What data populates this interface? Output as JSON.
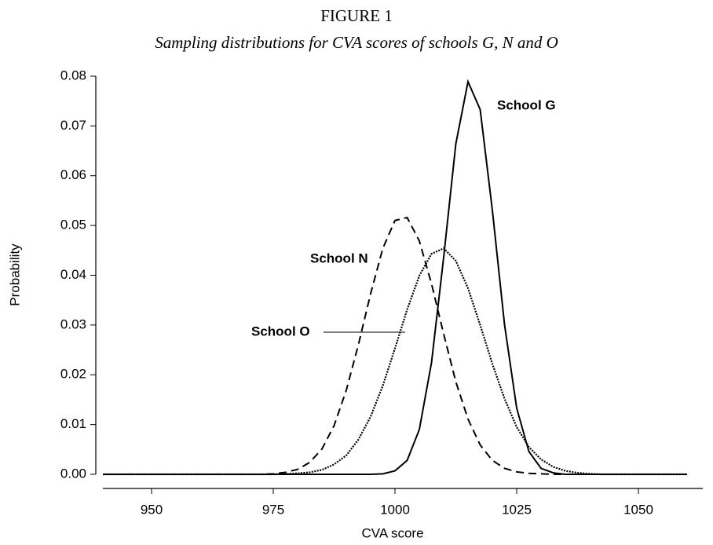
{
  "chart_data": {
    "type": "line",
    "title": "FIGURE 1",
    "subtitle": "Sampling distributions for CVA scores of schools G, N and O",
    "x_label": "CVA score",
    "y_label": "Probability",
    "x": [
      940,
      942.5,
      945,
      947.5,
      950,
      952.5,
      955,
      957.5,
      960,
      962.5,
      965,
      967.5,
      970,
      972.5,
      975,
      977.5,
      980,
      982.5,
      985,
      987.5,
      990,
      992.5,
      995,
      997.5,
      1000,
      1002.5,
      1005,
      1007.5,
      1010,
      1012.5,
      1015,
      1017.5,
      1020,
      1022.5,
      1025,
      1027.5,
      1030,
      1032.5,
      1035,
      1037.5,
      1040,
      1042.5,
      1045,
      1047.5,
      1050,
      1052.5,
      1055,
      1057.5,
      1060
    ],
    "series": [
      {
        "name": "School G",
        "color": "#000000",
        "dash": "solid",
        "values": [
          0,
          0,
          0,
          0,
          0,
          0,
          0,
          0,
          0,
          0,
          0,
          0,
          0,
          0,
          0,
          0,
          0,
          0,
          0,
          0,
          0,
          0,
          0,
          0.0001,
          0.0007,
          0.0028,
          0.009,
          0.0224,
          0.0436,
          0.0664,
          0.0789,
          0.0733,
          0.0531,
          0.0301,
          0.0133,
          0.0046,
          0.0012,
          0.0003,
          0,
          0,
          0,
          0,
          0,
          0,
          0,
          0,
          0,
          0,
          0
        ]
      },
      {
        "name": "School N",
        "color": "#000000",
        "dash": "dashed",
        "values": [
          0,
          0,
          0,
          0,
          0,
          0,
          0,
          0,
          0,
          0,
          0,
          0,
          0,
          0,
          0.0001,
          0.0004,
          0.001,
          0.0024,
          0.0051,
          0.0098,
          0.0169,
          0.0261,
          0.0363,
          0.0454,
          0.051,
          0.0516,
          0.0469,
          0.0383,
          0.0282,
          0.0186,
          0.0111,
          0.0059,
          0.0028,
          0.0012,
          0.0005,
          0.0002,
          0.0001,
          0,
          0,
          0,
          0,
          0,
          0,
          0,
          0,
          0,
          0,
          0,
          0
        ]
      },
      {
        "name": "School O",
        "color": "#000000",
        "dash": "dotted",
        "values": [
          0,
          0,
          0,
          0,
          0,
          0,
          0,
          0,
          0,
          0,
          0,
          0,
          0,
          0,
          0,
          0.0001,
          0.0002,
          0.0004,
          0.0009,
          0.002,
          0.0038,
          0.007,
          0.0116,
          0.0178,
          0.0253,
          0.0331,
          0.0399,
          0.0443,
          0.0454,
          0.0429,
          0.0374,
          0.03,
          0.0222,
          0.0152,
          0.0095,
          0.0055,
          0.003,
          0.0015,
          0.0007,
          0.0003,
          0.0001,
          0,
          0,
          0,
          0,
          0,
          0,
          0,
          0
        ]
      }
    ],
    "xlim": [
      940,
      1060
    ],
    "xticks": [
      950,
      975,
      1000,
      1025,
      1050
    ],
    "ylim": [
      0,
      0.08
    ],
    "yticks": [
      {
        "value": 0,
        "label": "0.00"
      },
      0.01,
      0.02,
      0.03,
      0.04,
      0.05,
      0.06,
      0.07,
      0.08
    ],
    "grid": false
  }
}
